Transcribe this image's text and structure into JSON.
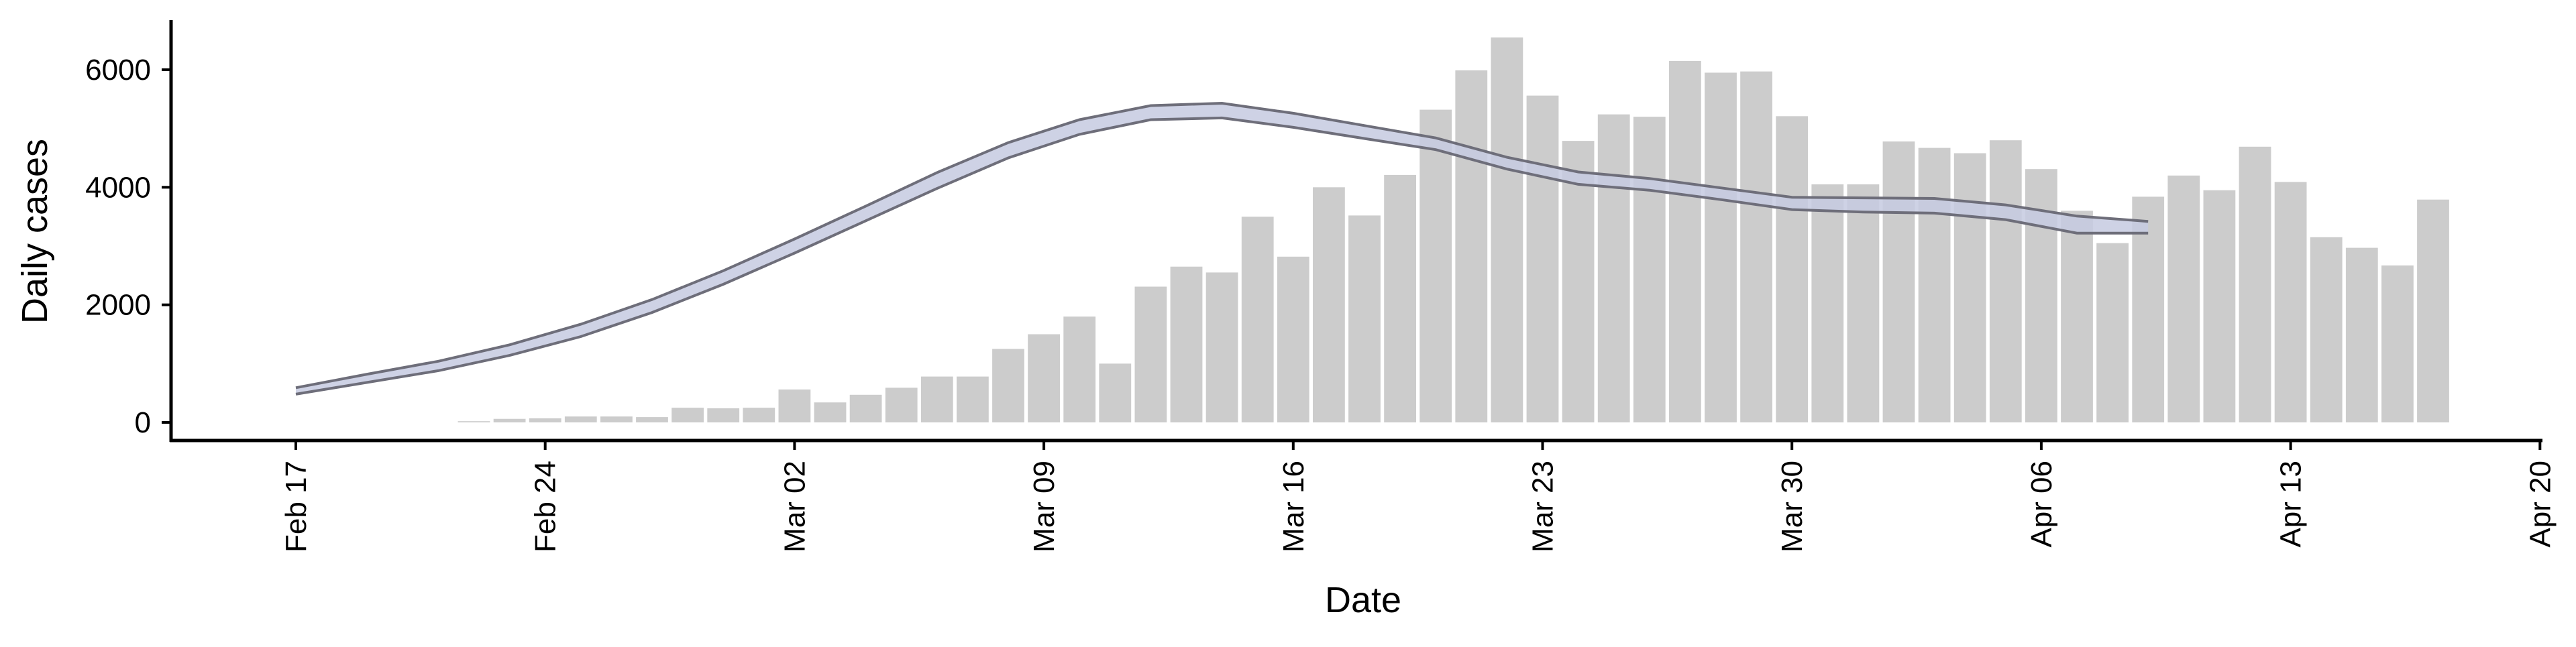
{
  "chart_data": {
    "type": "bar",
    "xlabel": "Date",
    "ylabel": "Daily cases",
    "ylim": [
      0,
      6800
    ],
    "yticks": [
      0,
      2000,
      4000,
      6000
    ],
    "x_axis": {
      "type": "date",
      "start": "2020-02-17",
      "end": "2020-04-20",
      "ticks": [
        {
          "date": "2020-02-17",
          "label": "Feb 17"
        },
        {
          "date": "2020-02-24",
          "label": "Feb 24"
        },
        {
          "date": "2020-03-02",
          "label": "Mar 02"
        },
        {
          "date": "2020-03-09",
          "label": "Mar 09"
        },
        {
          "date": "2020-03-16",
          "label": "Mar 16"
        },
        {
          "date": "2020-03-23",
          "label": "Mar 23"
        },
        {
          "date": "2020-03-30",
          "label": "Mar 30"
        },
        {
          "date": "2020-04-06",
          "label": "Apr 06"
        },
        {
          "date": "2020-04-13",
          "label": "Apr 13"
        },
        {
          "date": "2020-04-20",
          "label": "Apr 20"
        }
      ]
    },
    "grid": false,
    "colors": {
      "bars": "#cccccc",
      "band": "#c5cae0",
      "band_edge": "#6e6e7a",
      "axis": "#000000"
    },
    "series": [
      {
        "type": "bar",
        "x": [
          "2020-02-22",
          "2020-02-23",
          "2020-02-24",
          "2020-02-25",
          "2020-02-26",
          "2020-02-27",
          "2020-02-28",
          "2020-02-29",
          "2020-03-01",
          "2020-03-02",
          "2020-03-03",
          "2020-03-04",
          "2020-03-05",
          "2020-03-06",
          "2020-03-07",
          "2020-03-08",
          "2020-03-09",
          "2020-03-10",
          "2020-03-11",
          "2020-03-12",
          "2020-03-13",
          "2020-03-14",
          "2020-03-15",
          "2020-03-16",
          "2020-03-17",
          "2020-03-18",
          "2020-03-19",
          "2020-03-20",
          "2020-03-21",
          "2020-03-22",
          "2020-03-23",
          "2020-03-24",
          "2020-03-25",
          "2020-03-26",
          "2020-03-27",
          "2020-03-28",
          "2020-03-29",
          "2020-03-30",
          "2020-03-31",
          "2020-04-01",
          "2020-04-02",
          "2020-04-03",
          "2020-04-04",
          "2020-04-05",
          "2020-04-06",
          "2020-04-07",
          "2020-04-08",
          "2020-04-09",
          "2020-04-10",
          "2020-04-11",
          "2020-04-12",
          "2020-04-13",
          "2020-04-14",
          "2020-04-15",
          "2020-04-16",
          "2020-04-17"
        ],
        "values": [
          20,
          60,
          70,
          100,
          100,
          90,
          250,
          240,
          250,
          560,
          340,
          470,
          590,
          780,
          780,
          1250,
          1500,
          1800,
          1000,
          2310,
          2650,
          2550,
          3500,
          2820,
          4000,
          3520,
          4210,
          5320,
          5990,
          6550,
          5560,
          4790,
          5240,
          5200,
          6150,
          5950,
          5970,
          5210,
          4050,
          4050,
          4780,
          4670,
          4580,
          4800,
          4310,
          3600,
          3050,
          3840,
          4200,
          3950,
          4690,
          4090,
          3150,
          2970,
          2670,
          3790
        ]
      },
      {
        "type": "band",
        "x": [
          "2020-02-17",
          "2020-02-19",
          "2020-02-21",
          "2020-02-23",
          "2020-02-25",
          "2020-02-27",
          "2020-02-29",
          "2020-03-02",
          "2020-03-04",
          "2020-03-06",
          "2020-03-08",
          "2020-03-10",
          "2020-03-12",
          "2020-03-14",
          "2020-03-16",
          "2020-03-18",
          "2020-03-20",
          "2020-03-22",
          "2020-03-24",
          "2020-03-26",
          "2020-03-28",
          "2020-03-30",
          "2020-04-01",
          "2020-04-03",
          "2020-04-05",
          "2020-04-07",
          "2020-04-09"
        ],
        "upper": [
          590,
          820,
          1040,
          1320,
          1670,
          2090,
          2580,
          3120,
          3680,
          4250,
          4760,
          5150,
          5390,
          5430,
          5260,
          5050,
          4840,
          4510,
          4260,
          4150,
          3990,
          3830,
          3820,
          3810,
          3700,
          3510,
          3420
        ],
        "lower": [
          480,
          680,
          880,
          1140,
          1460,
          1870,
          2350,
          2880,
          3430,
          3980,
          4500,
          4900,
          5150,
          5180,
          5020,
          4830,
          4640,
          4310,
          4050,
          3950,
          3790,
          3620,
          3580,
          3560,
          3450,
          3220,
          3220
        ]
      }
    ]
  }
}
